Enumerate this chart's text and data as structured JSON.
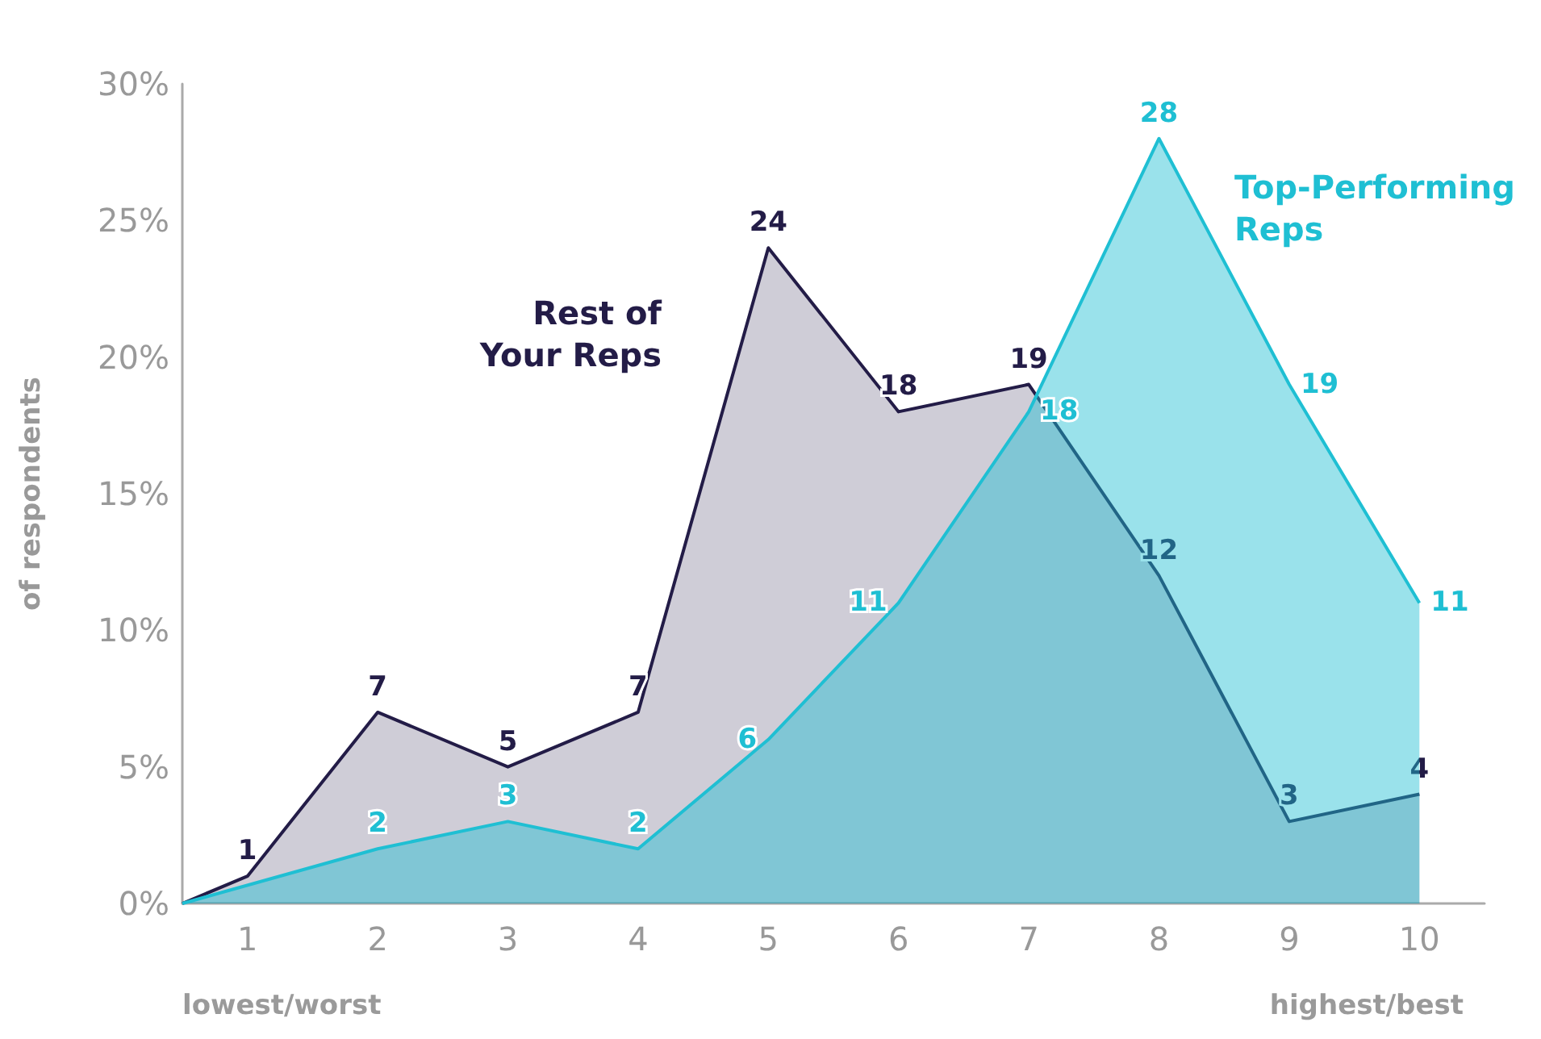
{
  "chart_data": {
    "type": "area",
    "ylabel": "of respondents",
    "xlim": [
      0.5,
      10.5
    ],
    "xticks": [
      1,
      2,
      3,
      4,
      5,
      6,
      7,
      8,
      9,
      10
    ],
    "ylim": [
      0,
      30
    ],
    "yticks": [
      {
        "value": 0,
        "label": "0%"
      },
      {
        "value": 5,
        "label": "5%"
      },
      {
        "value": 10,
        "label": "10%"
      },
      {
        "value": 15,
        "label": "15%"
      },
      {
        "value": 20,
        "label": "20%"
      },
      {
        "value": 25,
        "label": "25%"
      },
      {
        "value": 30,
        "label": "30%"
      }
    ],
    "grid": false,
    "legend": false,
    "marker": "none",
    "series": [
      {
        "name": "Rest of Your Reps",
        "color": "#231c47",
        "x": [
          0.5,
          1,
          2,
          3,
          4,
          5,
          6,
          7,
          8,
          9,
          10
        ],
        "values": [
          0,
          1,
          7,
          5,
          7,
          24,
          18,
          19,
          12,
          3,
          4
        ],
        "value_labels": [
          null,
          "1",
          "7",
          "5",
          "7",
          "24",
          "18",
          "19",
          "12",
          "3",
          "4"
        ]
      },
      {
        "name": "Top-Performing Reps",
        "color": "#1fbfd3",
        "x": [
          0.5,
          2,
          3,
          4,
          5,
          6,
          7,
          8,
          9,
          10
        ],
        "values": [
          0,
          2,
          3,
          2,
          6,
          11,
          18,
          28,
          19,
          11
        ],
        "value_labels": [
          null,
          "2",
          "3",
          "2",
          "6",
          "11",
          "18",
          "28",
          "19",
          "11"
        ]
      }
    ],
    "annotations": [
      "lowest/worst",
      "highest/best"
    ]
  }
}
